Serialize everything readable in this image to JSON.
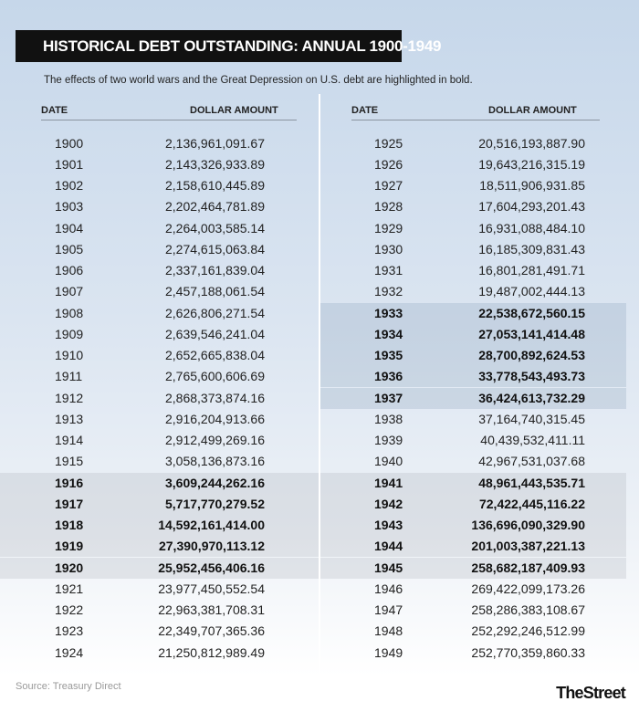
{
  "header": {
    "title": "HISTORICAL DEBT OUTSTANDING: ANNUAL 1900-1949",
    "subtitle": "The effects of two world wars and the Great Depression on U.S. debt are highlighted in bold."
  },
  "table": {
    "columns": [
      "DATE",
      "DOLLAR AMOUNT"
    ],
    "left": {
      "rows": [
        {
          "date": "1900",
          "amount": "2,136,961,091.67",
          "bold": false
        },
        {
          "date": "1901",
          "amount": "2,143,326,933.89",
          "bold": false
        },
        {
          "date": "1902",
          "amount": "2,158,610,445.89",
          "bold": false
        },
        {
          "date": "1903",
          "amount": "2,202,464,781.89",
          "bold": false
        },
        {
          "date": "1904",
          "amount": "2,264,003,585.14",
          "bold": false
        },
        {
          "date": "1905",
          "amount": "2,274,615,063.84",
          "bold": false
        },
        {
          "date": "1906",
          "amount": "2,337,161,839.04",
          "bold": false
        },
        {
          "date": "1907",
          "amount": "2,457,188,061.54",
          "bold": false
        },
        {
          "date": "1908",
          "amount": "2,626,806,271.54",
          "bold": false
        },
        {
          "date": "1909",
          "amount": "2,639,546,241.04",
          "bold": false
        },
        {
          "date": "1910",
          "amount": "2,652,665,838.04",
          "bold": false
        },
        {
          "date": "1911",
          "amount": "2,765,600,606.69",
          "bold": false
        },
        {
          "date": "1912",
          "amount": "2,868,373,874.16",
          "bold": false
        },
        {
          "date": "1913",
          "amount": "2,916,204,913.66",
          "bold": false
        },
        {
          "date": "1914",
          "amount": "2,912,499,269.16",
          "bold": false
        },
        {
          "date": "1915",
          "amount": "3,058,136,873.16",
          "bold": false
        },
        {
          "date": "1916",
          "amount": "3,609,244,262.16",
          "bold": true
        },
        {
          "date": "1917",
          "amount": "5,717,770,279.52",
          "bold": true
        },
        {
          "date": "1918",
          "amount": "14,592,161,414.00",
          "bold": true
        },
        {
          "date": "1919",
          "amount": "27,390,970,113.12",
          "bold": true
        },
        {
          "date": "1920",
          "amount": "25,952,456,406.16",
          "bold": true
        },
        {
          "date": "1921",
          "amount": "23,977,450,552.54",
          "bold": false
        },
        {
          "date": "1922",
          "amount": "22,963,381,708.31",
          "bold": false
        },
        {
          "date": "1923",
          "amount": "22,349,707,365.36",
          "bold": false
        },
        {
          "date": "1924",
          "amount": "21,250,812,989.49",
          "bold": false
        }
      ]
    },
    "right": {
      "rows": [
        {
          "date": "1925",
          "amount": "20,516,193,887.90",
          "bold": false
        },
        {
          "date": "1926",
          "amount": "19,643,216,315.19",
          "bold": false
        },
        {
          "date": "1927",
          "amount": "18,511,906,931.85",
          "bold": false
        },
        {
          "date": "1928",
          "amount": "17,604,293,201.43",
          "bold": false
        },
        {
          "date": "1929",
          "amount": "16,931,088,484.10",
          "bold": false
        },
        {
          "date": "1930",
          "amount": "16,185,309,831.43",
          "bold": false
        },
        {
          "date": "1931",
          "amount": "16,801,281,491.71",
          "bold": false
        },
        {
          "date": "1932",
          "amount": "19,487,002,444.13",
          "bold": false
        },
        {
          "date": "1933",
          "amount": "22,538,672,560.15",
          "bold": true
        },
        {
          "date": "1934",
          "amount": "27,053,141,414.48",
          "bold": true
        },
        {
          "date": "1935",
          "amount": "28,700,892,624.53",
          "bold": true
        },
        {
          "date": "1936",
          "amount": "33,778,543,493.73",
          "bold": true
        },
        {
          "date": "1937",
          "amount": "36,424,613,732.29",
          "bold": true
        },
        {
          "date": "1938",
          "amount": "37,164,740,315.45",
          "bold": false
        },
        {
          "date": "1939",
          "amount": "40,439,532,411.11",
          "bold": false
        },
        {
          "date": "1940",
          "amount": "42,967,531,037.68",
          "bold": false
        },
        {
          "date": "1941",
          "amount": "48,961,443,535.71",
          "bold": true
        },
        {
          "date": "1942",
          "amount": "72,422,445,116.22",
          "bold": true
        },
        {
          "date": "1943",
          "amount": "136,696,090,329.90",
          "bold": true
        },
        {
          "date": "1944",
          "amount": "201,003,387,221.13",
          "bold": true
        },
        {
          "date": "1945",
          "amount": "258,682,187,409.93",
          "bold": true
        },
        {
          "date": "1946",
          "amount": "269,422,099,173.26",
          "bold": false
        },
        {
          "date": "1947",
          "amount": "258,286,383,108.67",
          "bold": false
        },
        {
          "date": "1948",
          "amount": "252,292,246,512.99",
          "bold": false
        },
        {
          "date": "1949",
          "amount": "252,770,359,860.33",
          "bold": false
        }
      ]
    }
  },
  "footer": {
    "source": "Source: Treasury Direct",
    "brand": "TheStreet"
  }
}
